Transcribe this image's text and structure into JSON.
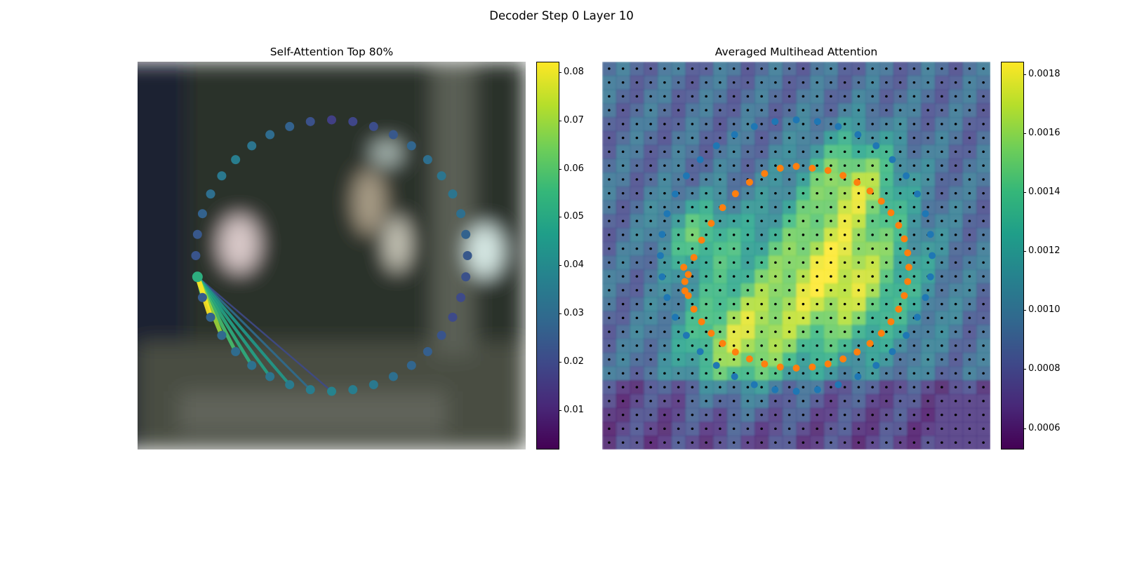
{
  "figure": {
    "title": "Decoder Step 0 Layer 10"
  },
  "colors": {
    "viridis": [
      "#440154",
      "#482878",
      "#3e4989",
      "#31688e",
      "#26828e",
      "#1f9e89",
      "#35b779",
      "#6ece58",
      "#b5de2b",
      "#fde725"
    ],
    "blue_points": "#1f77b4",
    "orange_points": "#ff7f0e",
    "grid_dots": "#000000"
  },
  "chart_data": [
    {
      "type": "scatter",
      "title": "Self-Attention Top 80%",
      "description_kind": "image-overlay",
      "colorbar": {
        "min": 0.002,
        "max": 0.082,
        "ticks": [
          0.01,
          0.02,
          0.03,
          0.04,
          0.05,
          0.06,
          0.07,
          0.08
        ],
        "tick_labels": [
          "0.01",
          "0.02",
          "0.03",
          "0.04",
          "0.05",
          "0.06",
          "0.07",
          "0.08"
        ]
      },
      "circle": {
        "n_points": 40,
        "center": [
          0.5,
          0.5
        ],
        "radius": [
          0.35,
          0.35
        ]
      },
      "point_values": [
        0.017,
        0.019,
        0.021,
        0.024,
        0.028,
        0.031,
        0.033,
        0.033,
        0.031,
        0.027,
        0.024,
        0.022,
        0.02,
        0.02,
        0.023,
        0.026,
        0.028,
        0.031,
        0.034,
        0.036,
        0.038,
        0.036,
        0.035,
        0.033,
        0.032,
        0.03,
        0.029,
        0.027,
        0.025,
        0.024,
        0.023,
        0.024,
        0.027,
        0.031,
        0.034,
        0.036,
        0.033,
        0.03,
        0.027,
        0.022
      ],
      "query_index": 29,
      "attention_links": [
        {
          "target": 28,
          "weight": 0.055
        },
        {
          "target": 27,
          "weight": 0.082
        },
        {
          "target": 26,
          "weight": 0.07
        },
        {
          "target": 25,
          "weight": 0.058
        },
        {
          "target": 24,
          "weight": 0.052
        },
        {
          "target": 23,
          "weight": 0.048
        },
        {
          "target": 22,
          "weight": 0.045
        },
        {
          "target": 21,
          "weight": 0.03
        },
        {
          "target": 20,
          "weight": 0.02
        }
      ]
    },
    {
      "type": "heatmap",
      "title": "Averaged Multihead Attention",
      "colorbar": {
        "min": 0.00053,
        "max": 0.00184,
        "ticks": [
          0.0006,
          0.0008,
          0.001,
          0.0012,
          0.0014,
          0.0016,
          0.0018
        ],
        "tick_labels": [
          "0.0006",
          "0.0008",
          "0.0010",
          "0.0012",
          "0.0014",
          "0.0016",
          "0.0018"
        ]
      },
      "grid": {
        "rows": 28,
        "cols": 28
      },
      "hotspots": [
        {
          "cx": 0.6,
          "cy": 0.55,
          "r": 0.2,
          "value": 0.0018
        },
        {
          "cx": 0.35,
          "cy": 0.72,
          "r": 0.15,
          "value": 0.0016
        },
        {
          "cx": 0.65,
          "cy": 0.3,
          "r": 0.12,
          "value": 0.0015
        },
        {
          "cx": 0.25,
          "cy": 0.45,
          "r": 0.1,
          "value": 0.0014
        }
      ],
      "background_value": 0.0009,
      "series": [
        {
          "name": "",
          "color": "#1f77b4",
          "kind": "reference circle",
          "n_points": 40
        },
        {
          "name": "",
          "color": "#ff7f0e",
          "kind": "predicted contour",
          "n_points": 44
        }
      ]
    }
  ]
}
